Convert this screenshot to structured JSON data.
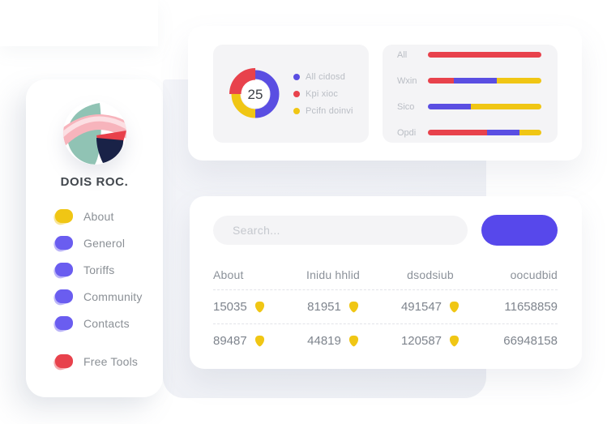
{
  "colors": {
    "blue": "#5a4ee2",
    "red": "#e8424c",
    "yellow": "#f0c614",
    "button_blue": "#5748eb",
    "panel_bg": "#f4f4f6",
    "backdrop_bg": "#eff0f5",
    "card_bg": "#ffffff",
    "donut_center_text": "#3a3e45"
  },
  "sidebar": {
    "brand": "DOIS ROC.",
    "items": [
      {
        "label": "About",
        "color": "#f0c614"
      },
      {
        "label": "Generol",
        "color": "#6a5df0"
      },
      {
        "label": "Toriffs",
        "color": "#6a5df0"
      },
      {
        "label": "Community",
        "color": "#6a5df0"
      },
      {
        "label": "Contacts",
        "color": "#6a5df0"
      }
    ],
    "footer_item": {
      "label": "Free Tools",
      "color": "#e8424c"
    }
  },
  "search": {
    "placeholder": "Search...",
    "value": ""
  },
  "table": {
    "columns": [
      "About",
      "Inidu hhlid",
      "dsodsiub",
      "oocudbid"
    ],
    "rows": [
      [
        {
          "value": "15035",
          "icon": "shield"
        },
        {
          "value": "81951",
          "icon": "shield"
        },
        {
          "value": "491547",
          "icon": "shield"
        },
        {
          "value": "11658859"
        }
      ],
      [
        {
          "value": "89487",
          "icon": "shield"
        },
        {
          "value": "44819",
          "icon": "shield"
        },
        {
          "value": "120587",
          "icon": "shield"
        },
        {
          "value": "66948158"
        }
      ]
    ]
  },
  "chart_data": [
    {
      "type": "donut",
      "center_value": "25",
      "legend_position": "right",
      "segments": [
        {
          "label": "All cidosd",
          "color": "#5a4ee2",
          "percent": 50,
          "start": 0
        },
        {
          "label": "Kpi xioc",
          "color": "#e8424c",
          "percent": 25,
          "start": 75,
          "emphasis": true
        },
        {
          "label": "Pcifn doinvi",
          "color": "#f0c614",
          "percent": 25,
          "start": 50
        }
      ]
    },
    {
      "type": "stacked_bar_horizontal",
      "categories": [
        "All",
        "Wxin",
        "Sico",
        "Opdi"
      ],
      "series_colors": {
        "red": "#e8424c",
        "blue": "#5a4ee2",
        "yellow": "#f0c614"
      },
      "rows": [
        [
          {
            "color": "red",
            "percent": 100
          }
        ],
        [
          {
            "color": "red",
            "percent": 23
          },
          {
            "color": "blue",
            "percent": 38
          },
          {
            "color": "yellow",
            "percent": 39
          }
        ],
        [
          {
            "color": "blue",
            "percent": 38
          },
          {
            "color": "yellow",
            "percent": 62
          }
        ],
        [
          {
            "color": "red",
            "percent": 52
          },
          {
            "color": "blue",
            "percent": 29
          },
          {
            "color": "yellow",
            "percent": 19
          }
        ]
      ],
      "xlim": [
        0,
        100
      ]
    }
  ]
}
